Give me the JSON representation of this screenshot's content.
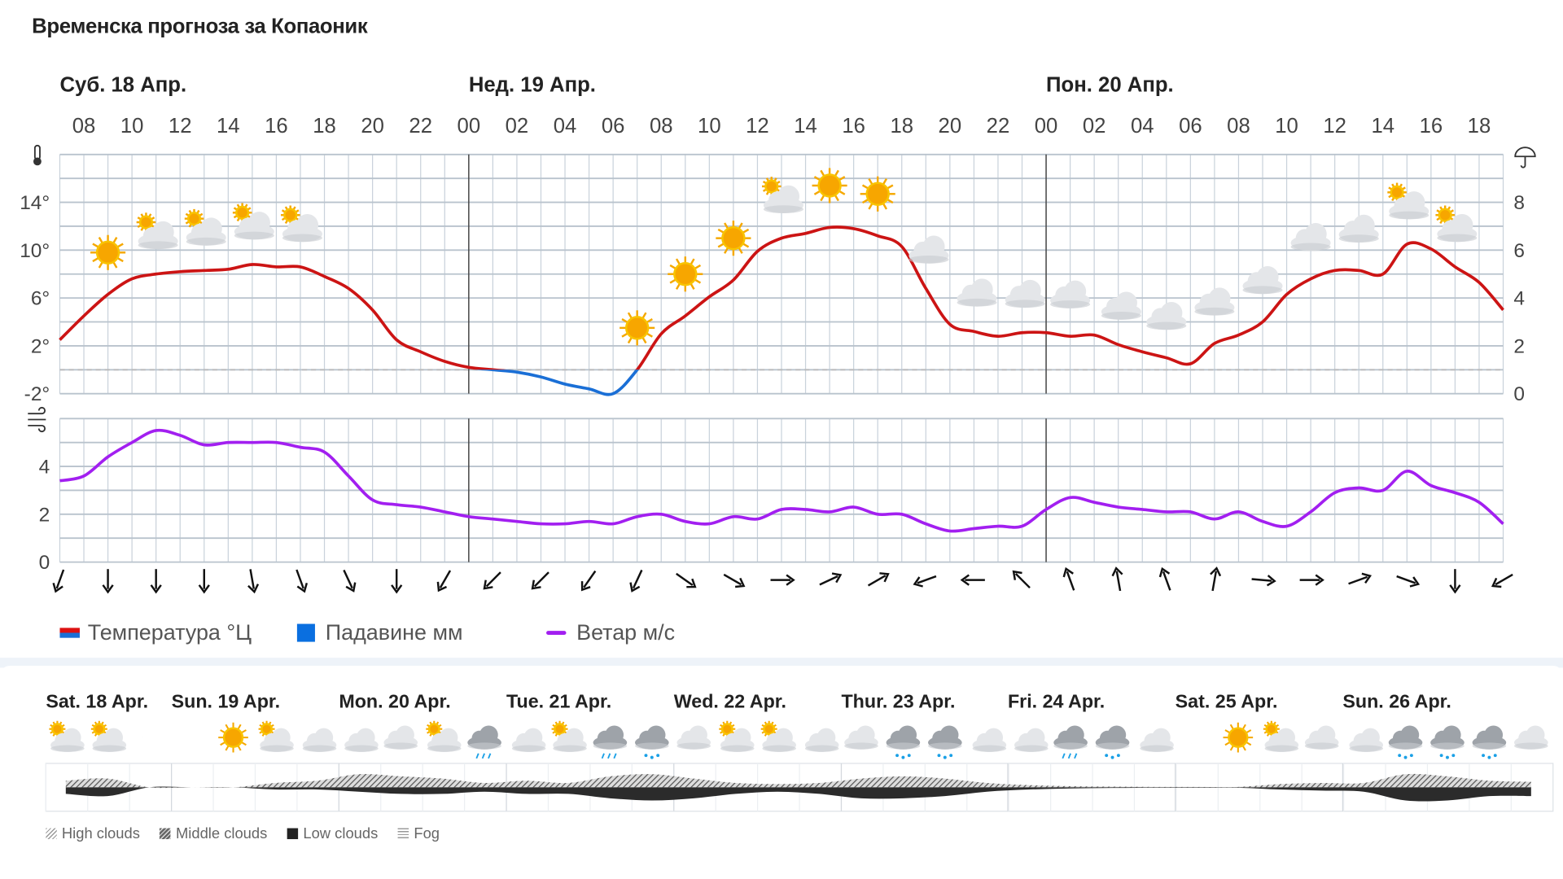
{
  "title": "Временска прогноза за Копаоник",
  "days": [
    {
      "label": "Суб. 18 Апр.",
      "start_hour_offset": 0
    },
    {
      "label": "Нед. 19 Апр.",
      "start_hour_offset": 17
    },
    {
      "label": "Пон. 20 Апр.",
      "start_hour_offset": 41
    }
  ],
  "hour_labels": [
    "08",
    "10",
    "12",
    "14",
    "16",
    "18",
    "20",
    "22",
    "00",
    "02",
    "04",
    "06",
    "08",
    "10",
    "12",
    "14",
    "16",
    "18",
    "20",
    "22",
    "00",
    "02",
    "04",
    "06",
    "08",
    "10",
    "12",
    "14",
    "16",
    "18"
  ],
  "icons": {
    "thermometer": "thermometer-icon",
    "umbrella": "umbrella-icon",
    "wind": "wind-icon"
  },
  "colors": {
    "temp_above_zero": "#cc1414",
    "temp_below_zero": "#1a6fd6",
    "precipitation": "#0a6fe0",
    "wind": "#a21ff0",
    "day_line": "#444444",
    "grid": "#c9d2db"
  },
  "chart_data": [
    {
      "type": "line",
      "name": "temperature",
      "x_start": "Sat 18 Apr 07:00",
      "x_step_hours": 1,
      "y_left_ticks": [
        "14°",
        "10°",
        "6°",
        "2°",
        "-2°"
      ],
      "y_left_tick_values": [
        14,
        10,
        6,
        2,
        -2
      ],
      "ylim": [
        -2,
        18
      ],
      "y_right_ticks": [
        "8",
        "6",
        "4",
        "2",
        "0"
      ],
      "y_right_tick_values": [
        8,
        6,
        4,
        2,
        0
      ],
      "y_right_lim": [
        0,
        10
      ],
      "zero_line": "dashed",
      "grid": true,
      "temperature": [
        2.5,
        4.5,
        6.3,
        7.6,
        8.0,
        8.2,
        8.3,
        8.4,
        8.8,
        8.6,
        8.6,
        7.8,
        6.8,
        5.0,
        2.5,
        1.5,
        0.7,
        0.2,
        0.0,
        -0.2,
        -0.6,
        -1.2,
        -1.6,
        -2.0,
        0.0,
        3.0,
        4.5,
        6.1,
        7.5,
        9.9,
        11.0,
        11.4,
        11.9,
        11.8,
        11.2,
        10.3,
        6.8,
        3.8,
        3.2,
        2.8,
        3.1,
        3.1,
        2.8,
        2.9,
        2.1,
        1.5,
        1.0,
        0.5,
        2.2,
        2.9,
        4.0,
        6.3,
        7.6,
        8.3,
        8.3,
        8.0,
        10.5,
        10.1,
        8.6,
        7.3,
        5.0
      ],
      "precipitation": [],
      "weather_icons": [
        "sun",
        "partly-cloudy",
        "partly-cloudy",
        "partly-cloudy",
        "partly-cloudy",
        "moon",
        "moon",
        "moon",
        "moon",
        "moon",
        "moon",
        "sun",
        "sun",
        "sun",
        "partly-cloudy",
        "sun",
        "sun",
        "moon-cloud",
        "moon-cloud",
        "moon-cloud",
        "cloud",
        "moon-cloud",
        "cloud",
        "cloud",
        "cloud",
        "cloud",
        "cloud",
        "partly-cloudy",
        "partly-cloudy"
      ]
    },
    {
      "type": "line",
      "name": "wind",
      "x_start": "Sat 18 Apr 07:00",
      "x_step_hours": 1,
      "y_ticks": [
        "4",
        "2",
        "0"
      ],
      "y_tick_values": [
        4,
        2,
        0
      ],
      "ylim": [
        0,
        6
      ],
      "grid": true,
      "values": [
        3.4,
        3.6,
        4.4,
        5.0,
        5.5,
        5.3,
        4.9,
        5.0,
        5.0,
        5.0,
        4.8,
        4.6,
        3.6,
        2.6,
        2.4,
        2.3,
        2.1,
        1.9,
        1.8,
        1.7,
        1.6,
        1.6,
        1.7,
        1.6,
        1.9,
        2.0,
        1.7,
        1.6,
        1.9,
        1.8,
        2.2,
        2.2,
        2.1,
        2.3,
        2.0,
        2.0,
        1.6,
        1.3,
        1.4,
        1.5,
        1.5,
        2.2,
        2.7,
        2.5,
        2.3,
        2.2,
        2.1,
        2.1,
        1.8,
        2.1,
        1.7,
        1.5,
        2.1,
        2.9,
        3.1,
        3.0,
        3.8,
        3.2,
        2.9,
        2.5,
        1.6
      ],
      "wind_arrow_heading_deg": [
        200,
        180,
        180,
        180,
        170,
        160,
        155,
        180,
        210,
        225,
        225,
        215,
        205,
        125,
        120,
        90,
        65,
        60,
        250,
        270,
        315,
        340,
        350,
        340,
        10,
        95,
        90,
        70,
        110,
        180,
        240
      ]
    }
  ],
  "legend": {
    "temperature": "Температура °Ц",
    "precipitation": "Падавине мм",
    "wind": "Ветар м/с"
  },
  "week": {
    "days": [
      "Sat. 18 Apr.",
      "Sun. 19 Apr.",
      "Mon. 20 Apr.",
      "Tue. 21 Apr.",
      "Wed. 22 Apr.",
      "Thur. 23 Apr.",
      "Fri. 24 Apr.",
      "Sat. 25 Apr.",
      "Sun. 26 Apr."
    ],
    "icons": [
      "partly-cloudy",
      "partly-cloudy",
      "moon",
      "moon",
      "sun",
      "partly-cloudy",
      "moon-cloud",
      "moon-cloud",
      "cloud",
      "partly-cloudy",
      "rain",
      "moon-cloud",
      "partly-cloudy",
      "rain",
      "snow",
      "cloud",
      "partly-cloudy",
      "partly-cloudy",
      "moon-cloud",
      "cloud",
      "snow",
      "snow",
      "moon-cloud",
      "moon-cloud",
      "rain",
      "snow",
      "moon-cloud",
      "moon",
      "sun",
      "partly-cloudy",
      "cloud",
      "moon-cloud",
      "snow",
      "snow",
      "snow",
      "cloud"
    ],
    "clouds_high_middle": [
      0.3,
      0.4,
      0,
      0,
      0,
      0.2,
      0.3,
      0.6,
      0.5,
      0.4,
      0.2,
      0.3,
      0.2,
      0.5,
      0.6,
      0.4,
      0.2,
      0.15,
      0.2,
      0.4,
      0.5,
      0.4,
      0.2,
      0.1,
      0.05,
      0.03,
      0.02,
      0.02,
      0.02,
      0.15,
      0.2,
      0.2,
      0.6,
      0.5,
      0.3,
      0.25
    ],
    "clouds_low": [
      0.3,
      0.4,
      0,
      0,
      0,
      0.1,
      0.1,
      0.2,
      0.3,
      0.3,
      0.2,
      0.3,
      0.3,
      0.5,
      0.6,
      0.5,
      0.3,
      0.2,
      0.3,
      0.5,
      0.5,
      0.4,
      0.2,
      0.1,
      0.05,
      0.03,
      0.02,
      0.02,
      0.02,
      0.1,
      0.15,
      0.2,
      0.6,
      0.6,
      0.4,
      0.4
    ],
    "legend": {
      "high": "High clouds",
      "middle": "Middle clouds",
      "low": "Low clouds",
      "fog": "Fog"
    }
  }
}
